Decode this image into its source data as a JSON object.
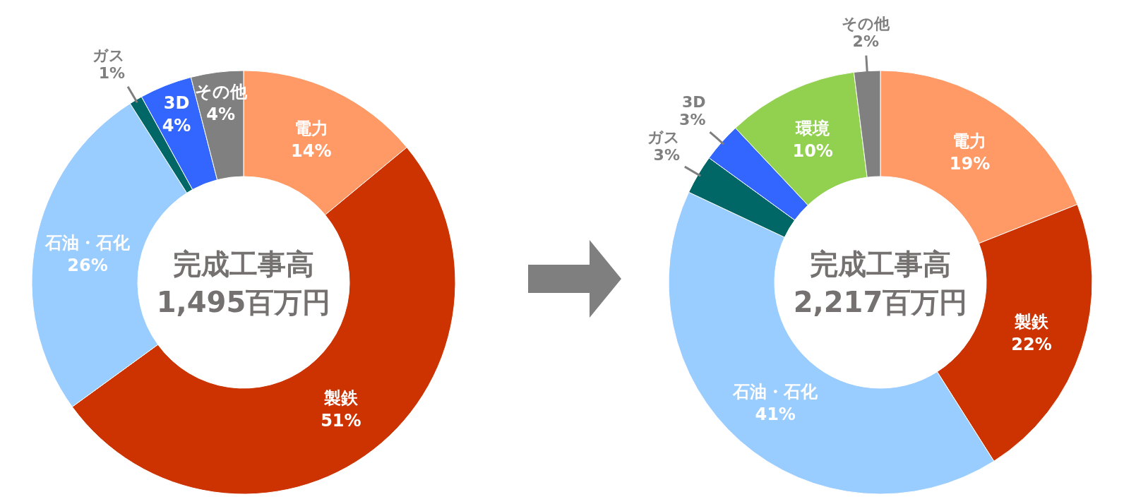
{
  "chart_data": [
    {
      "type": "donut",
      "title": "完成工事高",
      "subtitle": "1,495百万円",
      "categories": [
        "電力",
        "製鉄",
        "石油・石化",
        "ガス",
        "3D",
        "その他"
      ],
      "values": [
        14,
        51,
        26,
        1,
        4,
        4
      ],
      "colors": [
        "#ff9966",
        "#cc3300",
        "#99ccff",
        "#006666",
        "#3366ff",
        "#808080"
      ],
      "value_labels": [
        "14%",
        "51%",
        "26%",
        "1%",
        "4%",
        "4%"
      ]
    },
    {
      "type": "donut",
      "title": "完成工事高",
      "subtitle": "2,217百万円",
      "categories": [
        "電力",
        "製鉄",
        "石油・石化",
        "ガス",
        "3D",
        "環境",
        "その他"
      ],
      "values": [
        19,
        22,
        41,
        3,
        3,
        10,
        2
      ],
      "colors": [
        "#ff9966",
        "#cc3300",
        "#99ccff",
        "#006666",
        "#3366ff",
        "#92d050",
        "#808080"
      ],
      "value_labels": [
        "19%",
        "22%",
        "41%",
        "3%",
        "3%",
        "10%",
        "2%"
      ]
    }
  ]
}
